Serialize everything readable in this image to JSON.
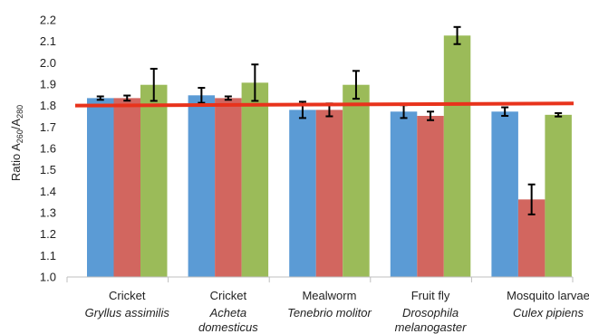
{
  "chart_data": {
    "type": "bar",
    "ylabel_prefix": "Ratio A",
    "ylabel_sub1": "260",
    "ylabel_sep": "/A",
    "ylabel_sub2": "280",
    "ylim": [
      1.0,
      2.2
    ],
    "ytick_step": 0.1,
    "ytick_labels": [
      "1.0",
      "1.1",
      "1.2",
      "1.3",
      "1.4",
      "1.5",
      "1.6",
      "1.7",
      "1.8",
      "1.9",
      "2.0",
      "2.1",
      "2.2"
    ],
    "grid": false,
    "categories": [
      {
        "name": "Cricket",
        "species": [
          "Gryllus assimilis"
        ]
      },
      {
        "name": "Cricket",
        "species": [
          "Acheta",
          "domesticus"
        ]
      },
      {
        "name": "Mealworm",
        "species": [
          "Tenebrio molitor"
        ]
      },
      {
        "name": "Fruit fly",
        "species": [
          "Drosophila",
          "melanogaster"
        ]
      },
      {
        "name": "Mosquito larvae",
        "species": [
          "Culex pipiens"
        ]
      }
    ],
    "series": [
      {
        "color": "#5b9bd5",
        "values": [
          1.835,
          1.848,
          1.78,
          1.772,
          1.772
        ],
        "errors": [
          0.008,
          0.035,
          0.038,
          0.03,
          0.02
        ]
      },
      {
        "color": "#d2665f",
        "values": [
          1.835,
          1.835,
          1.78,
          1.752,
          1.362
        ],
        "errors": [
          0.012,
          0.008,
          0.03,
          0.02,
          0.07
        ]
      },
      {
        "color": "#9bbb59",
        "values": [
          1.897,
          1.907,
          1.897,
          2.127,
          1.757
        ],
        "errors": [
          0.075,
          0.085,
          0.065,
          0.04,
          0.008
        ]
      }
    ],
    "reference_line": {
      "value": 1.8,
      "value_end": 1.81,
      "color": "#e8331c"
    }
  }
}
